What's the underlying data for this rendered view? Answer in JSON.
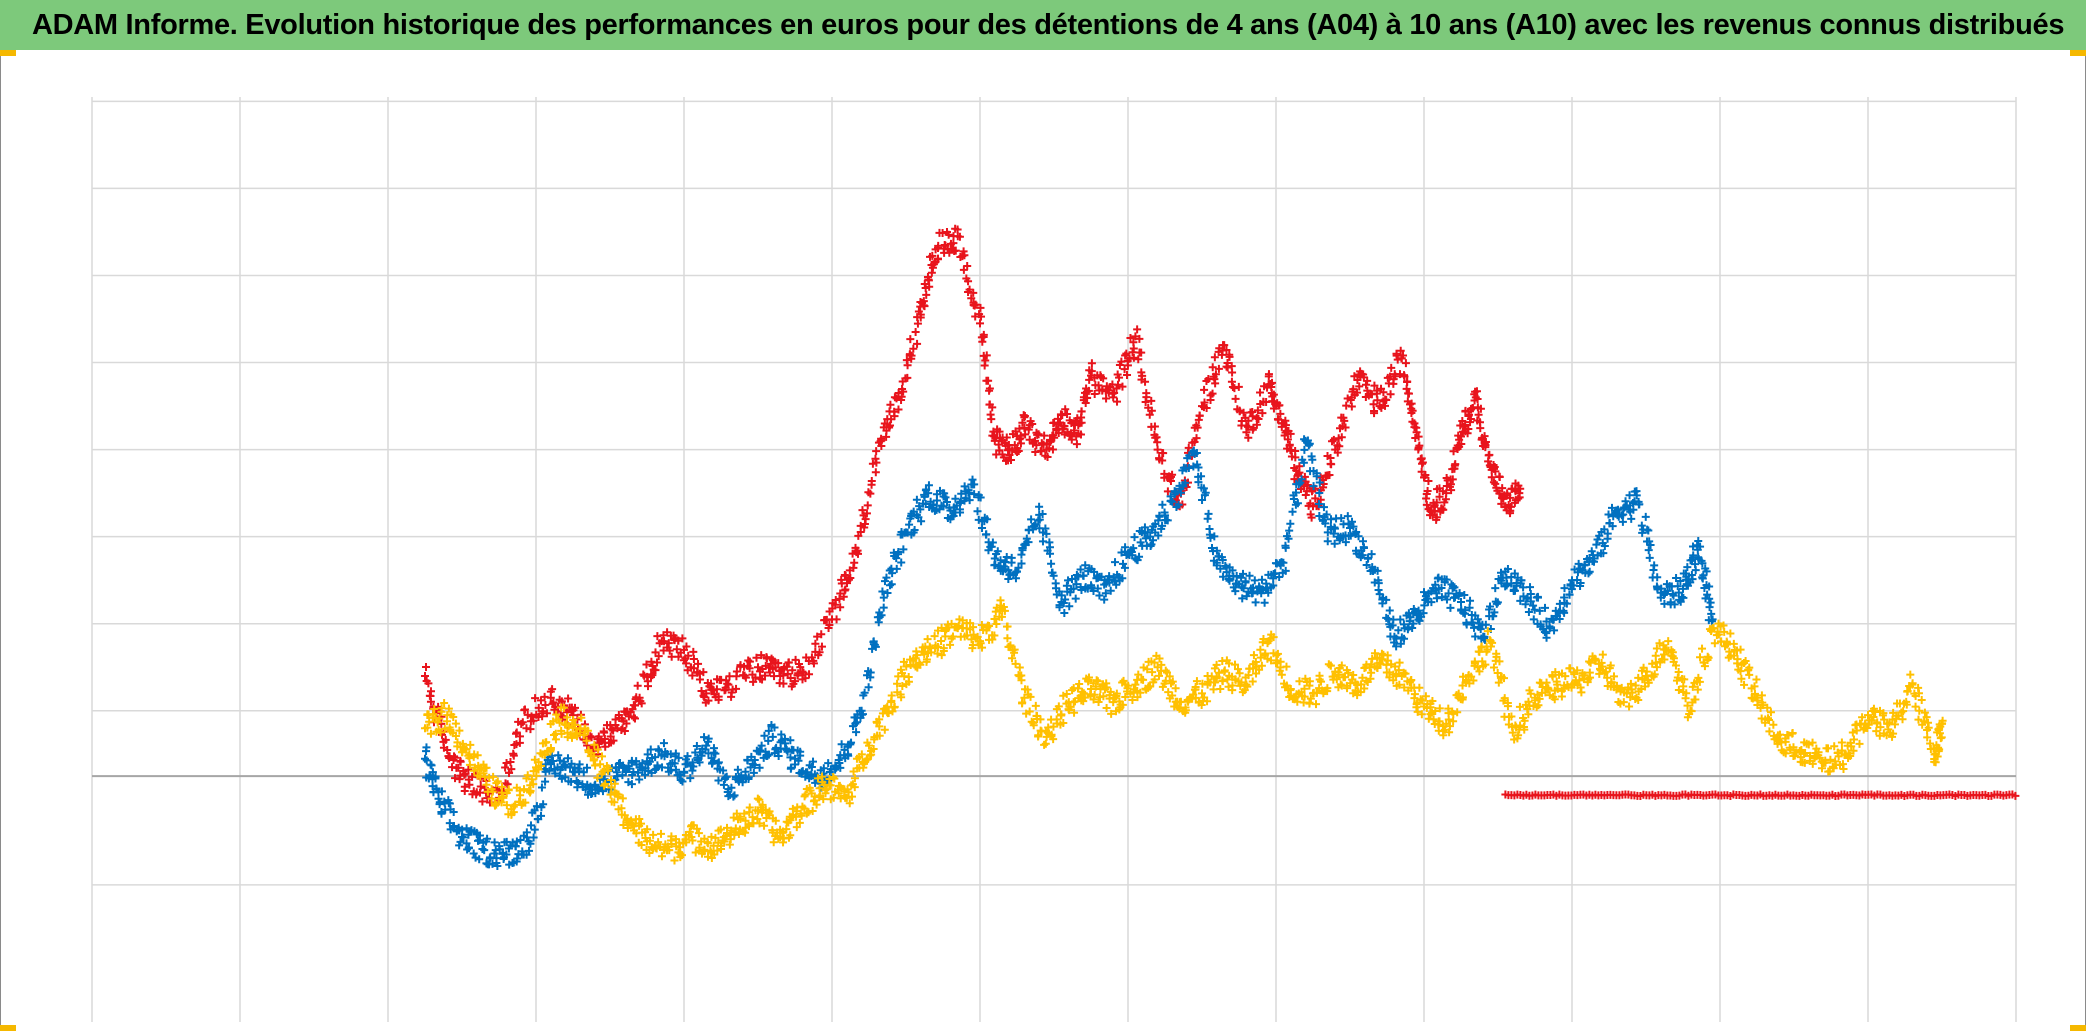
{
  "title": "ADAM Informe. Evolution historique des performances en euros pour des détentions de 4 ans (A04) à 10 ans (A10) avec les revenus connus distribués",
  "colors": {
    "title_bg": "#7dc97b",
    "grid": "#d9d9d9",
    "zero_line": "#a6a6a6",
    "corner_accent": "#f5b800"
  },
  "chart_data": {
    "type": "scatter",
    "marker": "plus",
    "title": "ADAM Informe. Evolution historique des performances en euros pour des détentions de 4 ans (A04) à 10 ans (A10) avec les revenus connus distribués",
    "xlabel": "",
    "ylabel": "",
    "axis_labels_visible": false,
    "grid": true,
    "x_range": [
      0,
      13
    ],
    "x_gridlines": [
      0,
      1,
      2,
      3,
      4,
      5,
      6,
      7,
      8,
      9,
      10,
      11,
      12,
      13
    ],
    "y_range": [
      -2.25,
      7.8
    ],
    "y_gridlines": [
      -1.25,
      0,
      0.75,
      1.75,
      2.75,
      3.75,
      4.75,
      5.75,
      6.75,
      7.75
    ],
    "zero_line": 0,
    "series": [
      {
        "name": "red",
        "color": "#e8141c",
        "x": [
          2.25,
          2.4,
          2.55,
          2.75,
          2.9,
          3.1,
          3.25,
          3.4,
          3.55,
          3.7,
          3.85,
          4.0,
          4.15,
          4.3,
          4.5,
          4.65,
          4.8,
          5.0,
          5.15,
          5.3,
          5.45,
          5.6,
          5.7,
          5.85,
          6.0,
          6.1,
          6.2,
          6.3,
          6.45,
          6.55,
          6.65,
          6.75,
          6.9,
          7.05,
          7.2,
          7.35,
          7.5,
          7.65,
          7.8,
          7.95,
          8.05,
          8.15,
          8.25,
          8.4,
          8.55,
          8.7,
          8.85,
          8.95,
          9.05,
          9.15,
          9.25,
          9.35,
          9.45,
          9.55,
          9.65
        ],
        "y": [
          1.15,
          0.3,
          -0.1,
          -0.25,
          0.6,
          0.9,
          0.7,
          0.35,
          0.55,
          0.9,
          1.55,
          1.45,
          0.95,
          1.05,
          1.25,
          1.15,
          1.2,
          1.8,
          2.45,
          3.6,
          4.4,
          5.3,
          6.05,
          6.2,
          5.2,
          3.85,
          3.75,
          4.0,
          3.75,
          4.15,
          3.9,
          4.6,
          4.35,
          5.05,
          3.75,
          3.1,
          4.25,
          4.95,
          3.95,
          4.5,
          4.05,
          3.45,
          3.1,
          3.75,
          4.55,
          4.25,
          4.8,
          3.95,
          3.05,
          3.25,
          3.9,
          4.35,
          3.55,
          3.1,
          3.3
        ]
      },
      {
        "name": "blue",
        "color": "#0070c0",
        "x": [
          2.25,
          2.35,
          2.5,
          2.65,
          2.8,
          2.95,
          3.1,
          3.25,
          3.4,
          3.55,
          3.7,
          3.85,
          4.0,
          4.15,
          4.3,
          4.45,
          4.6,
          4.75,
          4.9,
          5.05,
          5.2,
          5.35,
          5.5,
          5.65,
          5.8,
          5.95,
          6.1,
          6.25,
          6.4,
          6.55,
          6.7,
          6.85,
          7.0,
          7.15,
          7.3,
          7.45,
          7.6,
          7.75,
          7.9,
          8.05,
          8.2,
          8.35,
          8.5,
          8.65,
          8.8,
          8.95,
          9.1,
          9.25,
          9.4,
          9.55,
          9.7,
          9.85,
          10.0,
          10.15,
          10.3,
          10.45,
          10.6,
          10.75,
          10.85,
          10.95
        ],
        "y": [
          0.2,
          -0.3,
          -0.7,
          -0.85,
          -0.9,
          -0.75,
          0.15,
          0.05,
          -0.1,
          0.0,
          0.1,
          0.25,
          0.05,
          0.35,
          -0.15,
          0.1,
          0.45,
          0.2,
          0.0,
          0.15,
          0.75,
          2.05,
          2.8,
          3.25,
          3.05,
          3.35,
          2.5,
          2.35,
          3.0,
          2.0,
          2.3,
          2.1,
          2.55,
          2.75,
          3.15,
          3.7,
          2.45,
          2.2,
          2.1,
          2.45,
          3.85,
          2.8,
          2.85,
          2.4,
          1.6,
          1.85,
          2.15,
          2.0,
          1.6,
          2.35,
          2.05,
          1.7,
          2.25,
          2.5,
          3.05,
          3.15,
          2.05,
          2.15,
          2.6,
          1.8
        ]
      },
      {
        "name": "yellow",
        "color": "#ffc000",
        "x": [
          2.25,
          2.4,
          2.55,
          2.7,
          2.85,
          3.0,
          3.15,
          3.3,
          3.45,
          3.6,
          3.75,
          3.9,
          4.05,
          4.2,
          4.35,
          4.5,
          4.65,
          4.8,
          4.95,
          5.1,
          5.25,
          5.4,
          5.55,
          5.7,
          5.85,
          6.0,
          6.15,
          6.3,
          6.45,
          6.6,
          6.75,
          6.9,
          7.05,
          7.2,
          7.35,
          7.5,
          7.65,
          7.8,
          7.95,
          8.1,
          8.25,
          8.4,
          8.55,
          8.7,
          8.85,
          9.0,
          9.15,
          9.3,
          9.45,
          9.6,
          9.75,
          9.9,
          10.05,
          10.2,
          10.35,
          10.5,
          10.65,
          10.8,
          10.95,
          11.1,
          11.25,
          11.4,
          11.55,
          11.7,
          11.85,
          12.0,
          12.15,
          12.3,
          12.45,
          12.5
        ],
        "y": [
          0.55,
          0.7,
          0.25,
          -0.15,
          -0.35,
          0.1,
          0.65,
          0.55,
          0.05,
          -0.45,
          -0.75,
          -0.85,
          -0.7,
          -0.8,
          -0.6,
          -0.4,
          -0.7,
          -0.35,
          -0.1,
          -0.25,
          0.35,
          0.85,
          1.35,
          1.5,
          1.7,
          1.55,
          1.9,
          0.9,
          0.45,
          0.85,
          1.0,
          0.85,
          1.05,
          1.25,
          0.85,
          0.95,
          1.2,
          1.05,
          1.55,
          1.0,
          0.95,
          1.2,
          1.05,
          1.3,
          1.15,
          0.8,
          0.6,
          1.15,
          1.55,
          0.5,
          0.9,
          1.05,
          1.1,
          1.3,
          0.85,
          1.15,
          1.55,
          0.75,
          1.7,
          1.45,
          0.9,
          0.4,
          0.3,
          0.15,
          0.25,
          0.7,
          0.5,
          1.05,
          0.25,
          0.6
        ]
      },
      {
        "name": "red_baseline",
        "color": "#e8141c",
        "x_start": 9.55,
        "x_end": 13.0,
        "y": -0.22
      }
    ]
  }
}
